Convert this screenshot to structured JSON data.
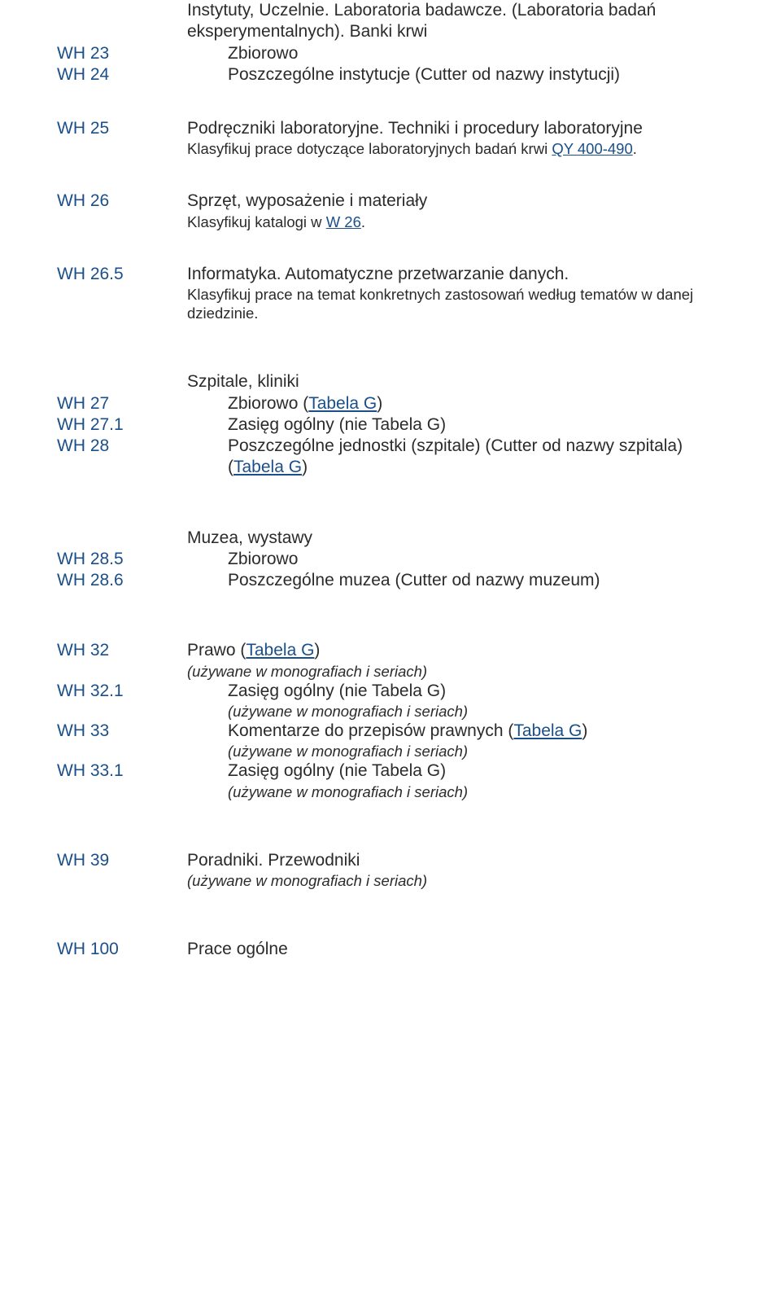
{
  "intro": {
    "line1": "Instytuty, Uczelnie. Laboratoria badawcze. (Laboratoria badań",
    "line2": "eksperymentalnych). Banki krwi"
  },
  "e23": {
    "code": "WH 23",
    "text": "Zbiorowo"
  },
  "e24": {
    "code": "WH 24",
    "text": "Poszczególne instytucje (Cutter od nazwy instytucji)"
  },
  "e25": {
    "code": "WH 25",
    "text": "Podręczniki laboratoryjne. Techniki i procedury laboratoryjne",
    "note_a": "Klasyfikuj prace dotyczące laboratoryjnych badań krwi ",
    "note_link": "QY 400-490",
    "note_b": "."
  },
  "e26": {
    "code": "WH 26",
    "text": "Sprzęt, wyposażenie i materiały",
    "note_a": "Klasyfikuj katalogi w ",
    "note_link": "W 26",
    "note_b": "."
  },
  "e265": {
    "code": "WH 26.5",
    "text": "Informatyka. Automatyczne przetwarzanie danych.",
    "note": "Klasyfikuj prace na temat konkretnych zastosowań według tematów w danej dziedzinie."
  },
  "hosp_header": "Szpitale, kliniki",
  "e27": {
    "code": "WH 27",
    "text_a": "Zbiorowo (",
    "link": "Tabela G",
    "text_b": ")"
  },
  "e271": {
    "code": "WH 27.1",
    "text": "Zasięg ogólny (nie Tabela G)"
  },
  "e28": {
    "code": "WH 28",
    "text_a": "Poszczególne jednostki (szpitale) (Cutter od nazwy szpitala) (",
    "link": "Tabela G",
    "text_b": ")"
  },
  "mus_header": "Muzea, wystawy",
  "e285": {
    "code": "WH 28.5",
    "text": "Zbiorowo"
  },
  "e286": {
    "code": "WH 28.6",
    "text": "Poszczególne muzea (Cutter od nazwy muzeum)"
  },
  "e32": {
    "code": "WH 32",
    "text_a": "Prawo (",
    "link": "Tabela G",
    "text_b": ")",
    "note": "(używane w monografiach i seriach)"
  },
  "e321": {
    "code": "WH 32.1",
    "text": "Zasięg ogólny (nie Tabela G)",
    "note": "(używane w monografiach i seriach)"
  },
  "e33": {
    "code": "WH 33",
    "text_a": "Komentarze do przepisów prawnych (",
    "link": "Tabela G",
    "text_b": ")",
    "note": "(używane w monografiach i seriach)"
  },
  "e331": {
    "code": "WH 33.1",
    "text": "Zasięg ogólny (nie Tabela G)",
    "note": "(używane w monografiach i seriach)"
  },
  "e39": {
    "code": "WH 39",
    "text": "Poradniki. Przewodniki",
    "note": "(używane w monografiach i seriach)"
  },
  "e100": {
    "code": "WH 100",
    "text": "Prace ogólne"
  }
}
